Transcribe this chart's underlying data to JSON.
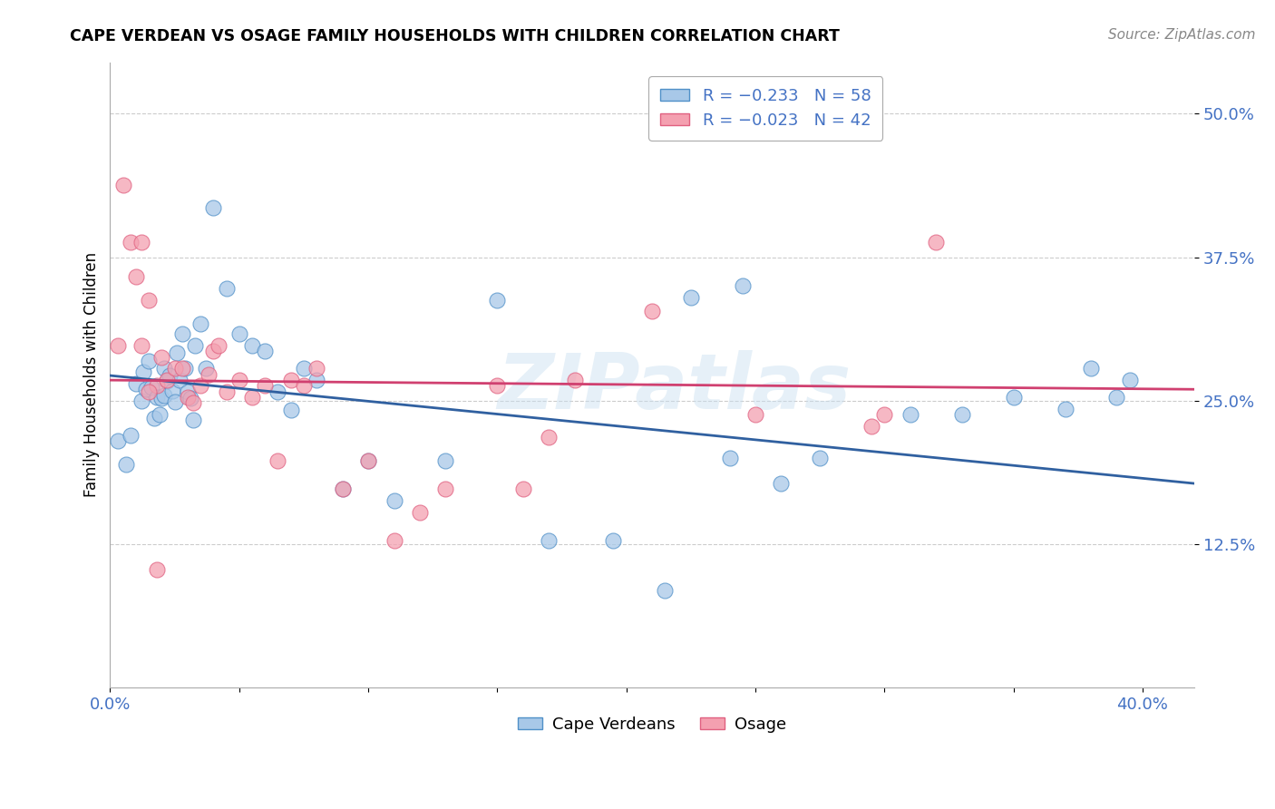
{
  "title": "CAPE VERDEAN VS OSAGE FAMILY HOUSEHOLDS WITH CHILDREN CORRELATION CHART",
  "source": "Source: ZipAtlas.com",
  "ylabel": "Family Households with Children",
  "ytick_labels": [
    "12.5%",
    "25.0%",
    "37.5%",
    "50.0%"
  ],
  "ytick_values": [
    0.125,
    0.25,
    0.375,
    0.5
  ],
  "xtick_positions": [
    0.0,
    0.05,
    0.1,
    0.15,
    0.2,
    0.25,
    0.3,
    0.35,
    0.4
  ],
  "xlim": [
    0.0,
    0.42
  ],
  "ylim": [
    0.0,
    0.545
  ],
  "legend_blue": "R = −0.233   N = 58",
  "legend_pink": "R = −0.023   N = 42",
  "legend_label_blue": "Cape Verdeans",
  "legend_label_pink": "Osage",
  "blue_color": "#a8c8e8",
  "pink_color": "#f4a0b0",
  "blue_edge_color": "#5090c8",
  "pink_edge_color": "#e06080",
  "blue_line_color": "#3060a0",
  "pink_line_color": "#d04070",
  "watermark": "ZIPatlas",
  "blue_points_x": [
    0.003,
    0.006,
    0.008,
    0.01,
    0.012,
    0.013,
    0.014,
    0.015,
    0.016,
    0.017,
    0.018,
    0.019,
    0.02,
    0.021,
    0.021,
    0.022,
    0.023,
    0.024,
    0.025,
    0.026,
    0.027,
    0.028,
    0.029,
    0.03,
    0.031,
    0.032,
    0.033,
    0.035,
    0.037,
    0.04,
    0.045,
    0.05,
    0.055,
    0.06,
    0.065,
    0.07,
    0.075,
    0.08,
    0.09,
    0.1,
    0.11,
    0.13,
    0.15,
    0.17,
    0.195,
    0.215,
    0.24,
    0.26,
    0.31,
    0.33,
    0.35,
    0.37,
    0.38,
    0.39,
    0.395,
    0.225,
    0.245,
    0.275
  ],
  "blue_points_y": [
    0.215,
    0.195,
    0.22,
    0.265,
    0.25,
    0.275,
    0.26,
    0.285,
    0.262,
    0.235,
    0.253,
    0.238,
    0.252,
    0.278,
    0.255,
    0.267,
    0.272,
    0.259,
    0.249,
    0.292,
    0.268,
    0.308,
    0.278,
    0.258,
    0.252,
    0.233,
    0.298,
    0.317,
    0.278,
    0.418,
    0.348,
    0.308,
    0.298,
    0.293,
    0.258,
    0.242,
    0.278,
    0.268,
    0.173,
    0.198,
    0.163,
    0.198,
    0.338,
    0.128,
    0.128,
    0.085,
    0.2,
    0.178,
    0.238,
    0.238,
    0.253,
    0.243,
    0.278,
    0.253,
    0.268,
    0.34,
    0.35,
    0.2
  ],
  "pink_points_x": [
    0.003,
    0.005,
    0.008,
    0.01,
    0.012,
    0.015,
    0.018,
    0.02,
    0.022,
    0.025,
    0.028,
    0.03,
    0.032,
    0.035,
    0.038,
    0.04,
    0.042,
    0.045,
    0.05,
    0.055,
    0.06,
    0.065,
    0.07,
    0.075,
    0.08,
    0.09,
    0.1,
    0.11,
    0.12,
    0.13,
    0.15,
    0.16,
    0.18,
    0.21,
    0.25,
    0.3,
    0.32,
    0.012,
    0.015,
    0.018,
    0.295,
    0.17
  ],
  "pink_points_y": [
    0.298,
    0.438,
    0.388,
    0.358,
    0.298,
    0.338,
    0.263,
    0.288,
    0.268,
    0.278,
    0.278,
    0.253,
    0.248,
    0.263,
    0.273,
    0.293,
    0.298,
    0.258,
    0.268,
    0.253,
    0.263,
    0.198,
    0.268,
    0.263,
    0.278,
    0.173,
    0.198,
    0.128,
    0.153,
    0.173,
    0.263,
    0.173,
    0.268,
    0.328,
    0.238,
    0.238,
    0.388,
    0.388,
    0.258,
    0.103,
    0.228,
    0.218
  ],
  "blue_trendline_x": [
    0.0,
    0.42
  ],
  "blue_trendline_y": [
    0.272,
    0.178
  ],
  "pink_trendline_x": [
    0.0,
    0.42
  ],
  "pink_trendline_y": [
    0.268,
    0.26
  ]
}
